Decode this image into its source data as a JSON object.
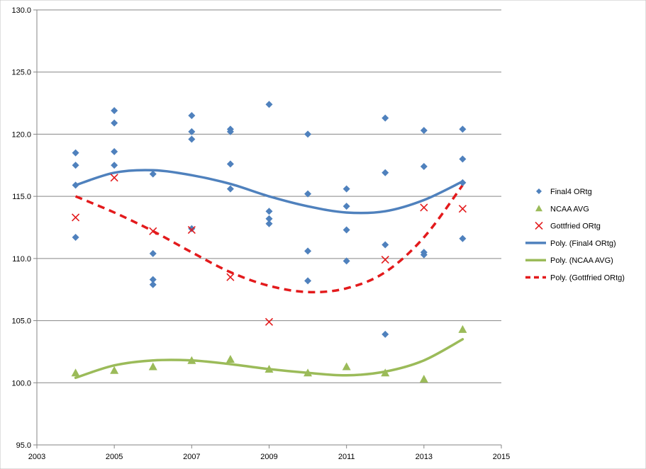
{
  "chart_data": {
    "type": "scatter",
    "xlim": [
      2003,
      2015
    ],
    "ylim": [
      95.0,
      130.0
    ],
    "x_ticks": [
      "2003",
      "2005",
      "2007",
      "2009",
      "2011",
      "2013",
      "2015"
    ],
    "y_ticks": [
      "95.0",
      "100.0",
      "105.0",
      "110.0",
      "115.0",
      "120.0",
      "125.0",
      "130.0"
    ],
    "grid": "horizontal",
    "legend_position": "right",
    "series": [
      {
        "name": "Final4 ORtg",
        "marker": "diamond",
        "color": "#4F81BD",
        "points": [
          [
            2004,
            118.5
          ],
          [
            2004,
            117.5
          ],
          [
            2004,
            115.9
          ],
          [
            2004,
            111.7
          ],
          [
            2005,
            121.9
          ],
          [
            2005,
            120.9
          ],
          [
            2005,
            118.6
          ],
          [
            2005,
            117.5
          ],
          [
            2006,
            116.8
          ],
          [
            2006,
            110.4
          ],
          [
            2006,
            108.3
          ],
          [
            2006,
            107.9
          ],
          [
            2007,
            121.5
          ],
          [
            2007,
            120.2
          ],
          [
            2007,
            119.6
          ],
          [
            2007,
            112.4
          ],
          [
            2008,
            120.4
          ],
          [
            2008,
            120.2
          ],
          [
            2008,
            117.6
          ],
          [
            2008,
            115.6
          ],
          [
            2009,
            122.4
          ],
          [
            2009,
            113.8
          ],
          [
            2009,
            113.2
          ],
          [
            2009,
            112.8
          ],
          [
            2010,
            120.0
          ],
          [
            2010,
            115.2
          ],
          [
            2010,
            110.6
          ],
          [
            2010,
            108.2
          ],
          [
            2011,
            115.6
          ],
          [
            2011,
            114.2
          ],
          [
            2011,
            112.3
          ],
          [
            2011,
            109.8
          ],
          [
            2012,
            121.3
          ],
          [
            2012,
            116.9
          ],
          [
            2012,
            111.1
          ],
          [
            2012,
            103.9
          ],
          [
            2013,
            120.3
          ],
          [
            2013,
            117.4
          ],
          [
            2013,
            110.5
          ],
          [
            2013,
            110.3
          ],
          [
            2014,
            120.4
          ],
          [
            2014,
            118.0
          ],
          [
            2014,
            116.1
          ],
          [
            2014,
            111.6
          ]
        ]
      },
      {
        "name": "NCAA AVG",
        "marker": "triangle",
        "color": "#9BBB59",
        "points": [
          [
            2004,
            100.8
          ],
          [
            2005,
            101.0
          ],
          [
            2006,
            101.3
          ],
          [
            2007,
            101.8
          ],
          [
            2008,
            101.9
          ],
          [
            2009,
            101.1
          ],
          [
            2010,
            100.8
          ],
          [
            2011,
            101.3
          ],
          [
            2012,
            100.8
          ],
          [
            2013,
            100.3
          ],
          [
            2014,
            104.3
          ]
        ]
      },
      {
        "name": "Gottfried ORtg",
        "marker": "x",
        "color": "#E31A1C",
        "points": [
          [
            2004,
            113.3
          ],
          [
            2005,
            116.5
          ],
          [
            2006,
            112.2
          ],
          [
            2007,
            112.3
          ],
          [
            2008,
            108.5
          ],
          [
            2009,
            104.9
          ],
          [
            2012,
            109.9
          ],
          [
            2013,
            114.1
          ],
          [
            2014,
            114.0
          ]
        ]
      }
    ],
    "trendlines": [
      {
        "name": "Poly. (Final4 ORtg)",
        "color": "#4F81BD",
        "style": "solid",
        "x": [
          2004,
          2005,
          2006,
          2007,
          2008,
          2009,
          2010,
          2011,
          2012,
          2013,
          2014
        ],
        "y": [
          115.9,
          116.9,
          117.1,
          116.7,
          116.0,
          115.0,
          114.2,
          113.7,
          113.8,
          114.7,
          116.2
        ]
      },
      {
        "name": "Poly. (NCAA AVG)",
        "color": "#9BBB59",
        "style": "solid",
        "x": [
          2004,
          2005,
          2006,
          2007,
          2008,
          2009,
          2010,
          2011,
          2012,
          2013,
          2014
        ],
        "y": [
          100.4,
          101.4,
          101.8,
          101.8,
          101.5,
          101.1,
          100.8,
          100.6,
          100.9,
          101.8,
          103.5
        ]
      },
      {
        "name": "Poly. (Gottfried ORtg)",
        "color": "#E31A1C",
        "style": "dashed",
        "x": [
          2004,
          2005,
          2006,
          2007,
          2008,
          2009,
          2010,
          2011,
          2012,
          2013,
          2014
        ],
        "y": [
          115.0,
          113.7,
          112.2,
          110.5,
          108.9,
          107.8,
          107.3,
          107.6,
          108.9,
          111.7,
          115.9
        ]
      }
    ]
  }
}
